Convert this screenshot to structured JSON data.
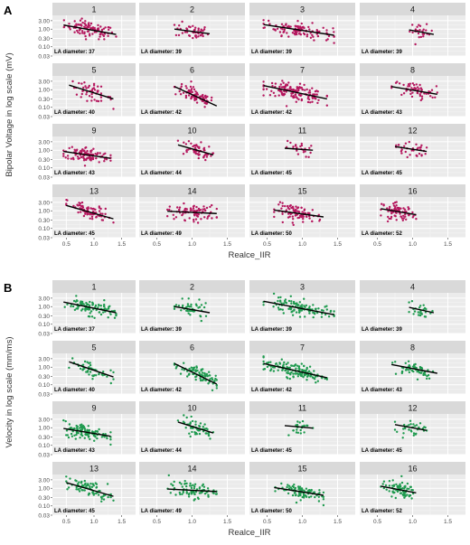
{
  "figure": {
    "x_tick_values": [
      0.5,
      1.0,
      1.5
    ],
    "x_tick_labels": [
      "0.5",
      "1.0",
      "1.5"
    ],
    "y_tick_values": [
      0.03,
      0.1,
      0.3,
      1.0,
      3.0
    ],
    "y_tick_labels": [
      "0.03",
      "0.10",
      "0.30",
      "1.00",
      "3.00"
    ],
    "xlabel": "Realce_IIR"
  },
  "chart_data": [
    {
      "type": "scatter",
      "panel_label": "A",
      "point_color": "#b5175e",
      "ylabel": "Bipolar Voltage in log scale (mV)",
      "y_scale": "log10",
      "xlim": [
        0.25,
        1.75
      ],
      "ylim": [
        0.03,
        6.0
      ],
      "grid": true,
      "annotation_prefix": "LA diameter:",
      "facets": [
        {
          "id": "1",
          "la": "37",
          "xr": [
            0.45,
            1.4
          ],
          "yc": 1.0,
          "fit": [
            [
              0.45,
              1.7
            ],
            [
              1.4,
              0.5
            ]
          ],
          "n": 95
        },
        {
          "id": "2",
          "la": "39",
          "xr": [
            0.75,
            1.25
          ],
          "yc": 0.8,
          "fit": [
            [
              0.75,
              1.0
            ],
            [
              1.25,
              0.55
            ]
          ],
          "n": 45
        },
        {
          "id": "3",
          "la": "39",
          "xr": [
            0.45,
            1.45
          ],
          "yc": 0.9,
          "fit": [
            [
              0.45,
              1.8
            ],
            [
              1.45,
              0.45
            ]
          ],
          "n": 110
        },
        {
          "id": "4",
          "la": "39",
          "xr": [
            0.95,
            1.3
          ],
          "yc": 0.6,
          "fit": [
            [
              0.95,
              0.9
            ],
            [
              1.3,
              0.5
            ]
          ],
          "n": 25
        },
        {
          "id": "5",
          "la": "40",
          "xr": [
            0.55,
            1.35
          ],
          "yc": 0.8,
          "fit": [
            [
              0.55,
              1.8
            ],
            [
              1.35,
              0.3
            ]
          ],
          "n": 50
        },
        {
          "id": "6",
          "la": "42",
          "xr": [
            0.75,
            1.35
          ],
          "yc": 0.5,
          "fit": [
            [
              0.75,
              1.5
            ],
            [
              1.35,
              0.12
            ]
          ],
          "n": 85
        },
        {
          "id": "7",
          "la": "42",
          "xr": [
            0.45,
            1.35
          ],
          "yc": 0.6,
          "fit": [
            [
              0.45,
              1.7
            ],
            [
              1.35,
              0.3
            ]
          ],
          "n": 140
        },
        {
          "id": "8",
          "la": "43",
          "xr": [
            0.7,
            1.35
          ],
          "yc": 1.0,
          "fit": [
            [
              0.7,
              1.5
            ],
            [
              1.35,
              0.55
            ]
          ],
          "n": 55
        },
        {
          "id": "9",
          "la": "43",
          "xr": [
            0.45,
            1.3
          ],
          "yc": 0.5,
          "fit": [
            [
              0.45,
              0.85
            ],
            [
              1.3,
              0.35
            ]
          ],
          "n": 110
        },
        {
          "id": "10",
          "la": "44",
          "xr": [
            0.8,
            1.3
          ],
          "yc": 1.3,
          "fit": [
            [
              0.8,
              2.0
            ],
            [
              1.3,
              0.55
            ]
          ],
          "n": 55
        },
        {
          "id": "11",
          "la": "45",
          "xr": [
            0.75,
            1.15
          ],
          "yc": 1.2,
          "fit": [
            [
              0.75,
              1.3
            ],
            [
              1.15,
              1.0
            ]
          ],
          "n": 25
        },
        {
          "id": "12",
          "la": "45",
          "xr": [
            0.75,
            1.2
          ],
          "yc": 1.3,
          "fit": [
            [
              0.75,
              1.6
            ],
            [
              1.2,
              0.85
            ]
          ],
          "n": 35
        },
        {
          "id": "13",
          "la": "45",
          "xr": [
            0.5,
            1.35
          ],
          "yc": 0.9,
          "fit": [
            [
              0.5,
              2.0
            ],
            [
              1.35,
              0.35
            ]
          ],
          "n": 80
        },
        {
          "id": "14",
          "la": "49",
          "xr": [
            0.65,
            1.35
          ],
          "yc": 0.9,
          "fit": [
            [
              0.65,
              0.95
            ],
            [
              1.35,
              0.7
            ]
          ],
          "n": 80
        },
        {
          "id": "15",
          "la": "50",
          "xr": [
            0.6,
            1.3
          ],
          "yc": 0.8,
          "fit": [
            [
              0.6,
              1.1
            ],
            [
              1.3,
              0.45
            ]
          ],
          "n": 90
        },
        {
          "id": "16",
          "la": "52",
          "xr": [
            0.55,
            1.05
          ],
          "yc": 0.9,
          "fit": [
            [
              0.55,
              1.3
            ],
            [
              1.05,
              0.6
            ]
          ],
          "n": 75
        }
      ]
    },
    {
      "type": "scatter",
      "panel_label": "B",
      "point_color": "#1e9a4e",
      "ylabel": "Velocity in log scale (mm/ms)",
      "y_scale": "log10",
      "xlim": [
        0.25,
        1.75
      ],
      "ylim": [
        0.03,
        6.0
      ],
      "grid": true,
      "annotation_prefix": "LA diameter:",
      "facets": [
        {
          "id": "1",
          "la": "37",
          "xr": [
            0.45,
            1.4
          ],
          "yc": 1.0,
          "fit": [
            [
              0.45,
              1.8
            ],
            [
              1.4,
              0.45
            ]
          ],
          "n": 95
        },
        {
          "id": "2",
          "la": "39",
          "xr": [
            0.75,
            1.25
          ],
          "yc": 0.7,
          "fit": [
            [
              0.75,
              1.0
            ],
            [
              1.25,
              0.45
            ]
          ],
          "n": 45
        },
        {
          "id": "3",
          "la": "39",
          "xr": [
            0.45,
            1.45
          ],
          "yc": 0.8,
          "fit": [
            [
              0.45,
              2.0
            ],
            [
              1.45,
              0.35
            ]
          ],
          "n": 110
        },
        {
          "id": "4",
          "la": "39",
          "xr": [
            0.95,
            1.3
          ],
          "yc": 0.6,
          "fit": [
            [
              0.95,
              0.9
            ],
            [
              1.3,
              0.45
            ]
          ],
          "n": 25
        },
        {
          "id": "5",
          "la": "40",
          "xr": [
            0.55,
            1.35
          ],
          "yc": 0.8,
          "fit": [
            [
              0.55,
              2.0
            ],
            [
              1.35,
              0.28
            ]
          ],
          "n": 50
        },
        {
          "id": "6",
          "la": "42",
          "xr": [
            0.75,
            1.35
          ],
          "yc": 0.5,
          "fit": [
            [
              0.75,
              1.6
            ],
            [
              1.35,
              0.11
            ]
          ],
          "n": 85
        },
        {
          "id": "7",
          "la": "42",
          "xr": [
            0.45,
            1.35
          ],
          "yc": 0.5,
          "fit": [
            [
              0.45,
              1.6
            ],
            [
              1.35,
              0.25
            ]
          ],
          "n": 140
        },
        {
          "id": "8",
          "la": "43",
          "xr": [
            0.7,
            1.35
          ],
          "yc": 0.8,
          "fit": [
            [
              0.7,
              1.4
            ],
            [
              1.35,
              0.45
            ]
          ],
          "n": 55
        },
        {
          "id": "9",
          "la": "43",
          "xr": [
            0.45,
            1.3
          ],
          "yc": 0.5,
          "fit": [
            [
              0.45,
              0.9
            ],
            [
              1.3,
              0.33
            ]
          ],
          "n": 110
        },
        {
          "id": "10",
          "la": "44",
          "xr": [
            0.8,
            1.3
          ],
          "yc": 1.3,
          "fit": [
            [
              0.8,
              2.1
            ],
            [
              1.3,
              0.5
            ]
          ],
          "n": 55
        },
        {
          "id": "11",
          "la": "45",
          "xr": [
            0.75,
            1.15
          ],
          "yc": 1.1,
          "fit": [
            [
              0.75,
              1.3
            ],
            [
              1.15,
              0.95
            ]
          ],
          "n": 25
        },
        {
          "id": "12",
          "la": "45",
          "xr": [
            0.75,
            1.2
          ],
          "yc": 1.1,
          "fit": [
            [
              0.75,
              1.5
            ],
            [
              1.2,
              0.7
            ]
          ],
          "n": 35
        },
        {
          "id": "13",
          "la": "45",
          "xr": [
            0.5,
            1.35
          ],
          "yc": 0.9,
          "fit": [
            [
              0.5,
              2.1
            ],
            [
              1.35,
              0.35
            ]
          ],
          "n": 80
        },
        {
          "id": "14",
          "la": "49",
          "xr": [
            0.65,
            1.35
          ],
          "yc": 0.9,
          "fit": [
            [
              0.65,
              0.9
            ],
            [
              1.35,
              0.65
            ]
          ],
          "n": 80
        },
        {
          "id": "15",
          "la": "50",
          "xr": [
            0.6,
            1.3
          ],
          "yc": 0.7,
          "fit": [
            [
              0.6,
              1.1
            ],
            [
              1.3,
              0.4
            ]
          ],
          "n": 90
        },
        {
          "id": "16",
          "la": "52",
          "xr": [
            0.55,
            1.05
          ],
          "yc": 0.8,
          "fit": [
            [
              0.55,
              1.3
            ],
            [
              1.05,
              0.55
            ]
          ],
          "n": 75
        }
      ]
    }
  ]
}
